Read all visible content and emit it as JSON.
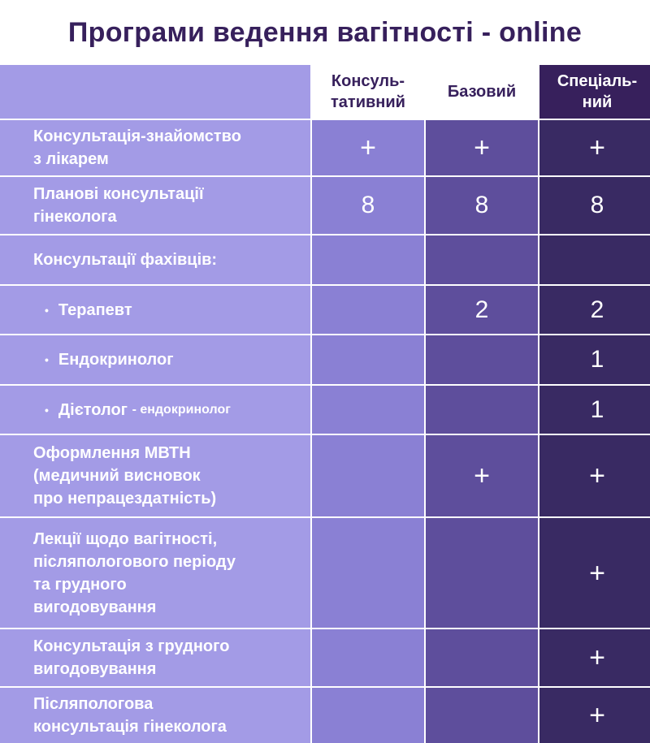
{
  "title": "Програми ведення вагітності - online",
  "columns": [
    "Консуль-\nтативний",
    "Базовий",
    "Спеціаль-\nний"
  ],
  "rows": [
    {
      "label": "Консультація-знайомство\nз лікарем",
      "values": [
        "+",
        "+",
        "+"
      ]
    },
    {
      "label": "Планові консультації\nгінеколога",
      "values": [
        "8",
        "8",
        "8"
      ]
    },
    {
      "label": "Консультації фахівців:",
      "values": [
        "",
        "",
        ""
      ]
    },
    {
      "label": "Терапевт",
      "values": [
        "",
        "2",
        "2"
      ]
    },
    {
      "label": "Ендокринолог",
      "values": [
        "",
        "",
        "1"
      ]
    },
    {
      "label": "Дієтолог",
      "label_small": "- ендокринолог",
      "values": [
        "",
        "",
        "1"
      ]
    },
    {
      "label": "Оформлення МВТН\n(медичний висновок\nпро непрацездатність)",
      "values": [
        "",
        "+",
        "+"
      ]
    },
    {
      "label": "Лекції щодо вагітності,\nпісляпологового періоду\nта грудного\nвигодовування",
      "values": [
        "",
        "",
        "+"
      ]
    },
    {
      "label": "Консультація з грудного\nвигодовування",
      "values": [
        "",
        "",
        "+"
      ]
    },
    {
      "label": "Післяпологова\nконсультація гінеколога",
      "values": [
        "",
        "",
        "+"
      ]
    }
  ],
  "colors": {
    "title": "#37205c",
    "label_column": "#a39be6",
    "consultative_column": "#8a80d4",
    "basic_column": "#5e4e9c",
    "special_column": "#392a63"
  }
}
